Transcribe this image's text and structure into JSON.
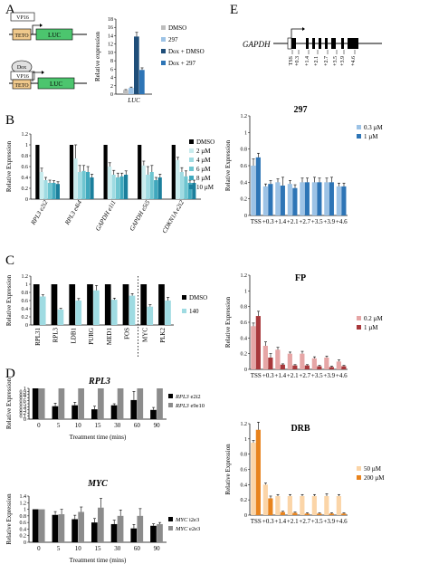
{
  "panel_letters": [
    "A",
    "B",
    "C",
    "D",
    "E"
  ],
  "constructs": {
    "vp16": "VP16",
    "teto": "TETO",
    "luc": "LUC",
    "dox": "Dox"
  },
  "gene_diagram": {
    "gene": "GAPDH",
    "positions": [
      "TSS",
      "+0.3",
      "+1.4",
      "+2.1",
      "+2.7",
      "+3.5",
      "+3.9",
      "+4.6"
    ]
  },
  "colors": {
    "black": "#000000",
    "gray": "#8c8c8c",
    "light_gray": "#bdbdbd",
    "cyan_1": "#c9ecee",
    "cyan_2": "#9fdbe2",
    "cyan_3": "#6ec5d0",
    "cyan_4": "#3fa8bd",
    "cyan_5": "#1b7f9c",
    "light_blue": "#9dc3e6",
    "dark_blue": "#2e75b6",
    "dark_navy": "#1f4e79",
    "pink": "#e6a6a6",
    "dark_red": "#a8383b",
    "peach": "#fbd5a8",
    "orange": "#e8831d"
  },
  "chart_data": [
    {
      "id": "A",
      "type": "bar",
      "categories": [
        "LUC"
      ],
      "series": [
        {
          "name": "DMSO",
          "values": [
            1.0
          ],
          "errors": [
            0.1
          ],
          "color": "#bdbdbd"
        },
        {
          "name": "297",
          "values": [
            1.5
          ],
          "errors": [
            0.2
          ],
          "color": "#9dc3e6"
        },
        {
          "name": "Dox + DMSO",
          "values": [
            13.8
          ],
          "errors": [
            1.0
          ],
          "color": "#1f4e79"
        },
        {
          "name": "Dox + 297",
          "values": [
            5.8
          ],
          "errors": [
            0.5
          ],
          "color": "#2e75b6"
        }
      ],
      "ylabel": "Relative expression",
      "ylim": [
        0,
        18
      ],
      "yticks": [
        0,
        2,
        4,
        6,
        8,
        10,
        12,
        14,
        16,
        18
      ],
      "legend": "right"
    },
    {
      "id": "B",
      "type": "bar",
      "categories": [
        "RPL3 e2i2",
        "RPL3 e4i4",
        "GAPDH e1i1",
        "GAPDH e5i5",
        "CDKN1A e2i2"
      ],
      "series": [
        {
          "name": "DMSO",
          "values": [
            1,
            1,
            1,
            1,
            1
          ],
          "errors": [
            0,
            0,
            0,
            0,
            0
          ],
          "color": "#000000"
        },
        {
          "name": "2 µM",
          "values": [
            0.5,
            0.75,
            0.6,
            0.62,
            0.72
          ],
          "errors": [
            0.07,
            0.25,
            0.07,
            0.08,
            0.05
          ],
          "color": "#c9ecee"
        },
        {
          "name": "4 µM",
          "values": [
            0.35,
            0.5,
            0.45,
            0.45,
            0.5
          ],
          "errors": [
            0.05,
            0.12,
            0.08,
            0.15,
            0.08
          ],
          "color": "#9fdbe2"
        },
        {
          "name": "6 µM",
          "values": [
            0.3,
            0.52,
            0.4,
            0.5,
            0.42
          ],
          "errors": [
            0.05,
            0.1,
            0.08,
            0.12,
            0.1
          ],
          "color": "#6ec5d0"
        },
        {
          "name": "8 µM",
          "values": [
            0.3,
            0.5,
            0.42,
            0.35,
            0.3
          ],
          "errors": [
            0.04,
            0.1,
            0.06,
            0.05,
            0.05
          ],
          "color": "#3fa8bd"
        },
        {
          "name": "10 µM",
          "values": [
            0.28,
            0.4,
            0.45,
            0.4,
            0.3
          ],
          "errors": [
            0.04,
            0.06,
            0.07,
            0.06,
            0.05
          ],
          "color": "#1b7f9c"
        }
      ],
      "ylabel": "Relative Expression",
      "ylim": [
        0,
        1.2
      ],
      "yticks": [
        0,
        0.2,
        0.4,
        0.6,
        0.8,
        1,
        1.2
      ],
      "legend": "right"
    },
    {
      "id": "C",
      "type": "bar",
      "categories": [
        "RPL31",
        "RPL3",
        "LDB1",
        "PURG",
        "MED1",
        "FOS",
        "MYC",
        "PLK2"
      ],
      "series": [
        {
          "name": "DMSO",
          "values": [
            1,
            1,
            1,
            1,
            1,
            1,
            1,
            1
          ],
          "errors": [
            0,
            0,
            0,
            0,
            0,
            0,
            0,
            0
          ],
          "color": "#000000"
        },
        {
          "name": "140",
          "values": [
            0.7,
            0.38,
            0.6,
            0.85,
            0.62,
            0.72,
            0.45,
            0.6
          ],
          "errors": [
            0.04,
            0.03,
            0.05,
            0.12,
            0.04,
            0.05,
            0.05,
            0.08
          ],
          "color": "#9fdbe2"
        }
      ],
      "divider_after": "FOS",
      "ylabel": "Relative Expression",
      "ylim": [
        0,
        1.2
      ],
      "yticks": [
        0,
        0.2,
        0.4,
        0.6,
        0.8,
        1,
        1.2
      ],
      "legend": "right"
    },
    {
      "id": "D-RPL3",
      "type": "bar",
      "title": "RPL3",
      "categories": [
        "0",
        "5",
        "10",
        "15",
        "30",
        "60",
        "90"
      ],
      "series": [
        {
          "name": "RPL3 e2i2",
          "values": [
            1,
            0.42,
            0.45,
            0.32,
            0.45,
            0.62,
            0.3
          ],
          "errors": [
            0,
            0.1,
            0.1,
            0.1,
            0.05,
            0.28,
            0.08
          ],
          "color": "#000000"
        },
        {
          "name": "RPL3 e9e10",
          "values": [
            1,
            1,
            1,
            1,
            1,
            1,
            1
          ],
          "errors": [
            0,
            0,
            0,
            0,
            0,
            0,
            0
          ],
          "color": "#8c8c8c"
        }
      ],
      "xlabel": "Treatment time (mins)",
      "ylabel": "Relative Expression",
      "ylim": [
        0,
        1
      ],
      "yticks": [
        0,
        0.1,
        0.2,
        0.3,
        0.4,
        0.5,
        0.6,
        0.7,
        0.8,
        0.9,
        1
      ],
      "legend": "right"
    },
    {
      "id": "D-MYC",
      "type": "bar",
      "title": "MYC",
      "categories": [
        "0",
        "5",
        "10",
        "15",
        "30",
        "60",
        "90"
      ],
      "series": [
        {
          "name": "MYC i2e3",
          "values": [
            1,
            0.83,
            0.7,
            0.6,
            0.55,
            0.42,
            0.5
          ],
          "errors": [
            0,
            0.1,
            0.12,
            0.12,
            0.12,
            0.12,
            0.06
          ],
          "color": "#000000"
        },
        {
          "name": "MYC e2e3",
          "values": [
            1,
            0.85,
            0.92,
            1.05,
            0.8,
            0.8,
            0.55
          ],
          "errors": [
            0,
            0.15,
            0.15,
            0.28,
            0.18,
            0.22,
            0.05
          ],
          "color": "#8c8c8c"
        }
      ],
      "xlabel": "Treatment time (mins)",
      "ylabel": "Relative Expression",
      "ylim": [
        0,
        1.4
      ],
      "yticks": [
        0,
        0.2,
        0.4,
        0.6,
        0.8,
        1,
        1.2,
        1.4
      ],
      "legend": "right"
    },
    {
      "id": "E-297",
      "type": "bar",
      "title": "297",
      "categories": [
        "TSS",
        "+0.3",
        "+1.4",
        "+2.1",
        "+2.7",
        "+3.5",
        "+3.9",
        "+4.6"
      ],
      "series": [
        {
          "name": "0.3 µM",
          "values": [
            0.6,
            0.35,
            0.4,
            0.38,
            0.4,
            0.4,
            0.4,
            0.35
          ],
          "errors": [
            0.08,
            0.03,
            0.04,
            0.04,
            0.05,
            0.06,
            0.05,
            0.04
          ],
          "color": "#9dc3e6"
        },
        {
          "name": "1 µM",
          "values": [
            0.7,
            0.38,
            0.36,
            0.33,
            0.4,
            0.4,
            0.4,
            0.35
          ],
          "errors": [
            0.05,
            0.04,
            0.1,
            0.04,
            0.05,
            0.05,
            0.06,
            0.04
          ],
          "color": "#2e75b6"
        }
      ],
      "ylabel": "Relative Expression",
      "ylim": [
        0,
        1.2
      ],
      "yticks": [
        0,
        0.2,
        0.4,
        0.6,
        0.8,
        1,
        1.2
      ],
      "legend": "right"
    },
    {
      "id": "E-FP",
      "type": "bar",
      "title": "FP",
      "categories": [
        "TSS",
        "+0.3",
        "+1.4",
        "+2.1",
        "+2.7",
        "+3.5",
        "+3.9",
        "+4.6"
      ],
      "series": [
        {
          "name": "0.2 µM",
          "values": [
            0.55,
            0.3,
            0.25,
            0.2,
            0.2,
            0.14,
            0.15,
            0.1
          ],
          "errors": [
            0.04,
            0.05,
            0.03,
            0.02,
            0.03,
            0.02,
            0.02,
            0.02
          ],
          "color": "#e6a6a6"
        },
        {
          "name": "1 µM",
          "values": [
            0.68,
            0.15,
            0.06,
            0.05,
            0.05,
            0.04,
            0.03,
            0.04
          ],
          "errors": [
            0.06,
            0.05,
            0.01,
            0.01,
            0.01,
            0.01,
            0.01,
            0.01
          ],
          "color": "#a8383b"
        }
      ],
      "ylabel": "Relative Expression",
      "ylim": [
        0,
        1.2
      ],
      "yticks": [
        0,
        0.2,
        0.4,
        0.6,
        0.8,
        1,
        1.2
      ],
      "legend": "right"
    },
    {
      "id": "E-DRB",
      "type": "bar",
      "title": "DRB",
      "categories": [
        "TSS",
        "+0.3",
        "+1.4",
        "+2.1",
        "+2.7",
        "+3.5",
        "+3.9",
        "+4.6"
      ],
      "series": [
        {
          "name": "50 µM",
          "values": [
            0.95,
            0.4,
            0.25,
            0.25,
            0.25,
            0.25,
            0.25,
            0.25
          ],
          "errors": [
            0.03,
            0.02,
            0.02,
            0.02,
            0.02,
            0.02,
            0.03,
            0.02
          ],
          "color": "#fbd5a8"
        },
        {
          "name": "200 µM",
          "values": [
            1.12,
            0.22,
            0.04,
            0.03,
            0.02,
            0.02,
            0.02,
            0.02
          ],
          "errors": [
            0.1,
            0.03,
            0.01,
            0.01,
            0.01,
            0.01,
            0.01,
            0.01
          ],
          "color": "#e8831d"
        }
      ],
      "ylabel": "Relative Expression",
      "ylim": [
        0,
        1.2
      ],
      "yticks": [
        0,
        0.2,
        0.4,
        0.6,
        0.8,
        1,
        1.2
      ],
      "legend": "right"
    }
  ]
}
